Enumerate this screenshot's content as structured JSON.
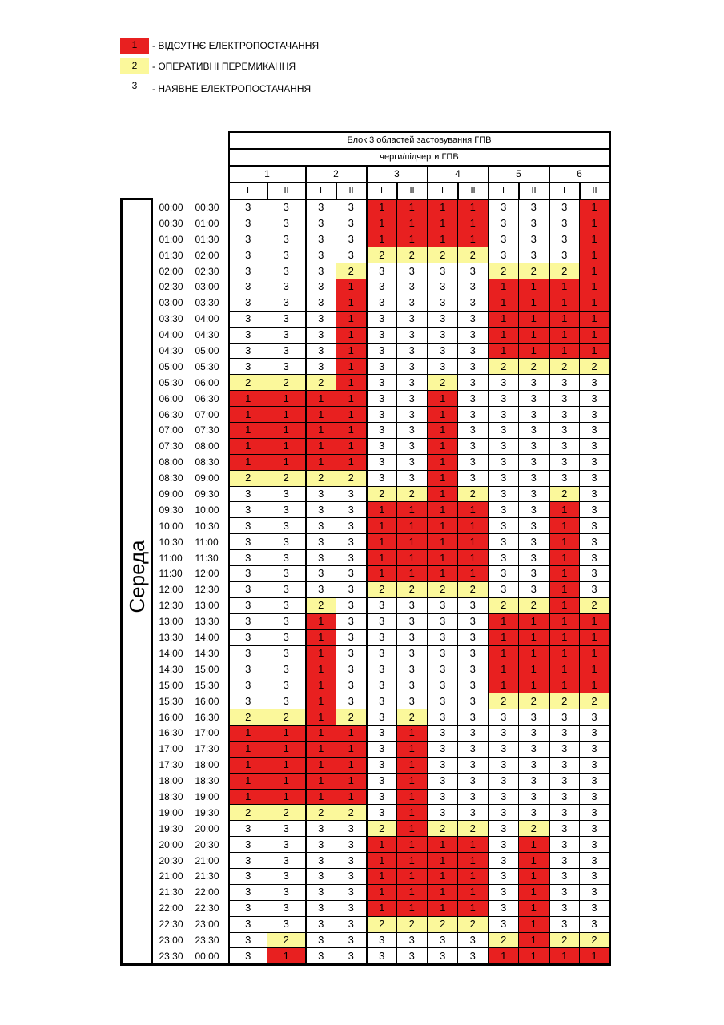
{
  "legend": [
    {
      "code": "1",
      "label": "- ВІДСУТНЄ ЕЛЕКТРОПОСТАЧАННЯ",
      "color": "#e82020"
    },
    {
      "code": "2",
      "label": "- ОПЕРАТИВНІ ПЕРЕМИКАННЯ",
      "color": "#fbf89b"
    },
    {
      "code": "3",
      "label": "- НАЯВНЕ ЕЛЕКТРОПОСТАЧАННЯ",
      "color": "#ffffff"
    }
  ],
  "table": {
    "title": "Блок 3 областей застовування ГПВ",
    "subtitle": "черги/підчерги ГПВ",
    "queues": [
      "1",
      "2",
      "3",
      "4",
      "5",
      "6"
    ],
    "subqueues": [
      "I",
      "II"
    ],
    "day": "Середа",
    "rows": [
      {
        "from": "00:00",
        "to": "00:30",
        "values": [
          "3",
          "3",
          "3",
          "3",
          "1",
          "1",
          "1",
          "1",
          "3",
          "3",
          "3",
          "1"
        ]
      },
      {
        "from": "00:30",
        "to": "01:00",
        "values": [
          "3",
          "3",
          "3",
          "3",
          "1",
          "1",
          "1",
          "1",
          "3",
          "3",
          "3",
          "1"
        ]
      },
      {
        "from": "01:00",
        "to": "01:30",
        "values": [
          "3",
          "3",
          "3",
          "3",
          "1",
          "1",
          "1",
          "1",
          "3",
          "3",
          "3",
          "1"
        ]
      },
      {
        "from": "01:30",
        "to": "02:00",
        "values": [
          "3",
          "3",
          "3",
          "3",
          "2",
          "2",
          "2",
          "2",
          "3",
          "3",
          "3",
          "1"
        ]
      },
      {
        "from": "02:00",
        "to": "02:30",
        "values": [
          "3",
          "3",
          "3",
          "2",
          "3",
          "3",
          "3",
          "3",
          "2",
          "2",
          "2",
          "1"
        ]
      },
      {
        "from": "02:30",
        "to": "03:00",
        "values": [
          "3",
          "3",
          "3",
          "1",
          "3",
          "3",
          "3",
          "3",
          "1",
          "1",
          "1",
          "1"
        ]
      },
      {
        "from": "03:00",
        "to": "03:30",
        "values": [
          "3",
          "3",
          "3",
          "1",
          "3",
          "3",
          "3",
          "3",
          "1",
          "1",
          "1",
          "1"
        ]
      },
      {
        "from": "03:30",
        "to": "04:00",
        "values": [
          "3",
          "3",
          "3",
          "1",
          "3",
          "3",
          "3",
          "3",
          "1",
          "1",
          "1",
          "1"
        ]
      },
      {
        "from": "04:00",
        "to": "04:30",
        "values": [
          "3",
          "3",
          "3",
          "1",
          "3",
          "3",
          "3",
          "3",
          "1",
          "1",
          "1",
          "1"
        ]
      },
      {
        "from": "04:30",
        "to": "05:00",
        "values": [
          "3",
          "3",
          "3",
          "1",
          "3",
          "3",
          "3",
          "3",
          "1",
          "1",
          "1",
          "1"
        ]
      },
      {
        "from": "05:00",
        "to": "05:30",
        "values": [
          "3",
          "3",
          "3",
          "1",
          "3",
          "3",
          "3",
          "3",
          "2",
          "2",
          "2",
          "2"
        ]
      },
      {
        "from": "05:30",
        "to": "06:00",
        "values": [
          "2",
          "2",
          "2",
          "1",
          "3",
          "3",
          "2",
          "3",
          "3",
          "3",
          "3",
          "3"
        ]
      },
      {
        "from": "06:00",
        "to": "06:30",
        "values": [
          "1",
          "1",
          "1",
          "1",
          "3",
          "3",
          "1",
          "3",
          "3",
          "3",
          "3",
          "3"
        ]
      },
      {
        "from": "06:30",
        "to": "07:00",
        "values": [
          "1",
          "1",
          "1",
          "1",
          "3",
          "3",
          "1",
          "3",
          "3",
          "3",
          "3",
          "3"
        ]
      },
      {
        "from": "07:00",
        "to": "07:30",
        "values": [
          "1",
          "1",
          "1",
          "1",
          "3",
          "3",
          "1",
          "3",
          "3",
          "3",
          "3",
          "3"
        ]
      },
      {
        "from": "07:30",
        "to": "08:00",
        "values": [
          "1",
          "1",
          "1",
          "1",
          "3",
          "3",
          "1",
          "3",
          "3",
          "3",
          "3",
          "3"
        ]
      },
      {
        "from": "08:00",
        "to": "08:30",
        "values": [
          "1",
          "1",
          "1",
          "1",
          "3",
          "3",
          "1",
          "3",
          "3",
          "3",
          "3",
          "3"
        ]
      },
      {
        "from": "08:30",
        "to": "09:00",
        "values": [
          "2",
          "2",
          "2",
          "2",
          "3",
          "3",
          "1",
          "3",
          "3",
          "3",
          "3",
          "3"
        ]
      },
      {
        "from": "09:00",
        "to": "09:30",
        "values": [
          "3",
          "3",
          "3",
          "3",
          "2",
          "2",
          "1",
          "2",
          "3",
          "3",
          "2",
          "3"
        ]
      },
      {
        "from": "09:30",
        "to": "10:00",
        "values": [
          "3",
          "3",
          "3",
          "3",
          "1",
          "1",
          "1",
          "1",
          "3",
          "3",
          "1",
          "3"
        ]
      },
      {
        "from": "10:00",
        "to": "10:30",
        "values": [
          "3",
          "3",
          "3",
          "3",
          "1",
          "1",
          "1",
          "1",
          "3",
          "3",
          "1",
          "3"
        ]
      },
      {
        "from": "10:30",
        "to": "11:00",
        "values": [
          "3",
          "3",
          "3",
          "3",
          "1",
          "1",
          "1",
          "1",
          "3",
          "3",
          "1",
          "3"
        ]
      },
      {
        "from": "11:00",
        "to": "11:30",
        "values": [
          "3",
          "3",
          "3",
          "3",
          "1",
          "1",
          "1",
          "1",
          "3",
          "3",
          "1",
          "3"
        ]
      },
      {
        "from": "11:30",
        "to": "12:00",
        "values": [
          "3",
          "3",
          "3",
          "3",
          "1",
          "1",
          "1",
          "1",
          "3",
          "3",
          "1",
          "3"
        ]
      },
      {
        "from": "12:00",
        "to": "12:30",
        "values": [
          "3",
          "3",
          "3",
          "3",
          "2",
          "2",
          "2",
          "2",
          "3",
          "3",
          "1",
          "3"
        ]
      },
      {
        "from": "12:30",
        "to": "13:00",
        "values": [
          "3",
          "3",
          "2",
          "3",
          "3",
          "3",
          "3",
          "3",
          "2",
          "2",
          "1",
          "2"
        ]
      },
      {
        "from": "13:00",
        "to": "13:30",
        "values": [
          "3",
          "3",
          "1",
          "3",
          "3",
          "3",
          "3",
          "3",
          "1",
          "1",
          "1",
          "1"
        ]
      },
      {
        "from": "13:30",
        "to": "14:00",
        "values": [
          "3",
          "3",
          "1",
          "3",
          "3",
          "3",
          "3",
          "3",
          "1",
          "1",
          "1",
          "1"
        ]
      },
      {
        "from": "14:00",
        "to": "14:30",
        "values": [
          "3",
          "3",
          "1",
          "3",
          "3",
          "3",
          "3",
          "3",
          "1",
          "1",
          "1",
          "1"
        ]
      },
      {
        "from": "14:30",
        "to": "15:00",
        "values": [
          "3",
          "3",
          "1",
          "3",
          "3",
          "3",
          "3",
          "3",
          "1",
          "1",
          "1",
          "1"
        ]
      },
      {
        "from": "15:00",
        "to": "15:30",
        "values": [
          "3",
          "3",
          "1",
          "3",
          "3",
          "3",
          "3",
          "3",
          "1",
          "1",
          "1",
          "1"
        ]
      },
      {
        "from": "15:30",
        "to": "16:00",
        "values": [
          "3",
          "3",
          "1",
          "3",
          "3",
          "3",
          "3",
          "3",
          "2",
          "2",
          "2",
          "2"
        ]
      },
      {
        "from": "16:00",
        "to": "16:30",
        "values": [
          "2",
          "2",
          "1",
          "2",
          "3",
          "2",
          "3",
          "3",
          "3",
          "3",
          "3",
          "3"
        ]
      },
      {
        "from": "16:30",
        "to": "17:00",
        "values": [
          "1",
          "1",
          "1",
          "1",
          "3",
          "1",
          "3",
          "3",
          "3",
          "3",
          "3",
          "3"
        ]
      },
      {
        "from": "17:00",
        "to": "17:30",
        "values": [
          "1",
          "1",
          "1",
          "1",
          "3",
          "1",
          "3",
          "3",
          "3",
          "3",
          "3",
          "3"
        ]
      },
      {
        "from": "17:30",
        "to": "18:00",
        "values": [
          "1",
          "1",
          "1",
          "1",
          "3",
          "1",
          "3",
          "3",
          "3",
          "3",
          "3",
          "3"
        ]
      },
      {
        "from": "18:00",
        "to": "18:30",
        "values": [
          "1",
          "1",
          "1",
          "1",
          "3",
          "1",
          "3",
          "3",
          "3",
          "3",
          "3",
          "3"
        ]
      },
      {
        "from": "18:30",
        "to": "19:00",
        "values": [
          "1",
          "1",
          "1",
          "1",
          "3",
          "1",
          "3",
          "3",
          "3",
          "3",
          "3",
          "3"
        ]
      },
      {
        "from": "19:00",
        "to": "19:30",
        "values": [
          "2",
          "2",
          "2",
          "2",
          "3",
          "1",
          "3",
          "3",
          "3",
          "3",
          "3",
          "3"
        ]
      },
      {
        "from": "19:30",
        "to": "20:00",
        "values": [
          "3",
          "3",
          "3",
          "3",
          "2",
          "1",
          "2",
          "2",
          "3",
          "2",
          "3",
          "3"
        ]
      },
      {
        "from": "20:00",
        "to": "20:30",
        "values": [
          "3",
          "3",
          "3",
          "3",
          "1",
          "1",
          "1",
          "1",
          "3",
          "1",
          "3",
          "3"
        ]
      },
      {
        "from": "20:30",
        "to": "21:00",
        "values": [
          "3",
          "3",
          "3",
          "3",
          "1",
          "1",
          "1",
          "1",
          "3",
          "1",
          "3",
          "3"
        ]
      },
      {
        "from": "21:00",
        "to": "21:30",
        "values": [
          "3",
          "3",
          "3",
          "3",
          "1",
          "1",
          "1",
          "1",
          "3",
          "1",
          "3",
          "3"
        ]
      },
      {
        "from": "21:30",
        "to": "22:00",
        "values": [
          "3",
          "3",
          "3",
          "3",
          "1",
          "1",
          "1",
          "1",
          "3",
          "1",
          "3",
          "3"
        ]
      },
      {
        "from": "22:00",
        "to": "22:30",
        "values": [
          "3",
          "3",
          "3",
          "3",
          "1",
          "1",
          "1",
          "1",
          "3",
          "1",
          "3",
          "3"
        ]
      },
      {
        "from": "22:30",
        "to": "23:00",
        "values": [
          "3",
          "3",
          "3",
          "3",
          "2",
          "2",
          "2",
          "2",
          "3",
          "1",
          "3",
          "3"
        ]
      },
      {
        "from": "23:00",
        "to": "23:30",
        "values": [
          "3",
          "2",
          "3",
          "3",
          "3",
          "3",
          "3",
          "3",
          "2",
          "1",
          "2",
          "2"
        ]
      },
      {
        "from": "23:30",
        "to": "00:00",
        "values": [
          "3",
          "1",
          "3",
          "3",
          "3",
          "3",
          "3",
          "3",
          "1",
          "1",
          "1",
          "1"
        ]
      }
    ]
  }
}
